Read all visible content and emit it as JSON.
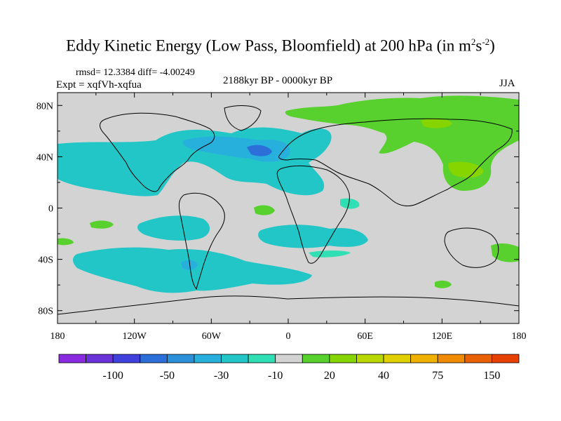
{
  "title": {
    "main": "Eddy Kinetic Energy (Low Pass, Bloomfield) at 200 hPa (in m",
    "sup1": "2",
    "mid": "s",
    "sup2": "-2",
    "close": ")"
  },
  "stats": "rmsd= 12.3384 diff= -4.00249",
  "expt": "Expt = xqfVh-xqfua",
  "period": "2188kyr BP - 0000kyr BP",
  "season": "JJA",
  "map": {
    "lat_labels": [
      "80N",
      "40N",
      "0",
      "40S",
      "80S"
    ],
    "lon_labels": [
      "180",
      "120W",
      "60W",
      "0",
      "60E",
      "120E",
      "180"
    ],
    "lat_values": [
      80,
      40,
      0,
      -40,
      -80
    ],
    "lon_values": [
      -180,
      -120,
      -60,
      0,
      60,
      120,
      180
    ],
    "lat_range": [
      -90,
      90
    ],
    "lon_range": [
      -180,
      180
    ],
    "land_mask_color": "#d3d3d3"
  },
  "colorbar": {
    "colors": [
      "#8a2be2",
      "#6a33d9",
      "#4040dd",
      "#2c6fd8",
      "#2b8fd9",
      "#28b0dc",
      "#23c6c6",
      "#30e0b4",
      "#d3d3d3",
      "#58d02e",
      "#86d400",
      "#b8d800",
      "#e0d000",
      "#f0b000",
      "#f08a00",
      "#e86000",
      "#e84000"
    ],
    "labels": [
      "-100",
      "-50",
      "-30",
      "-10",
      "20",
      "40",
      "75",
      "150"
    ]
  }
}
